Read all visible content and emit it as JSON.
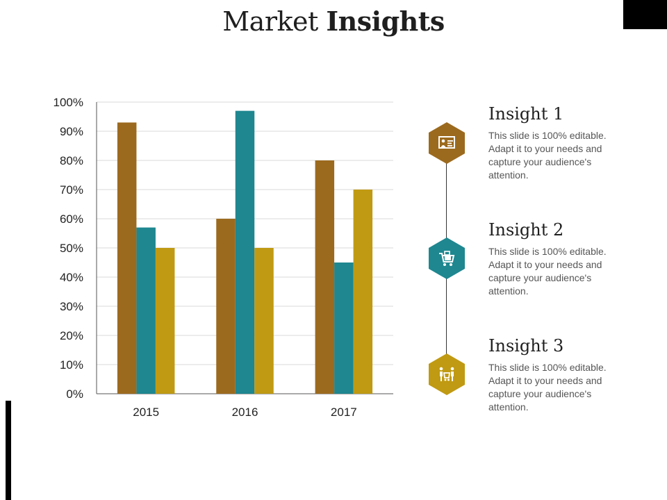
{
  "title": {
    "regular": "Market",
    "bold": "Insights"
  },
  "colors": {
    "series1": "#9c6a1e",
    "series2": "#1e8790",
    "series3": "#c09a12"
  },
  "chart_data": {
    "type": "bar",
    "categories": [
      "2015",
      "2016",
      "2017"
    ],
    "series": [
      {
        "values": [
          93,
          60,
          80
        ]
      },
      {
        "values": [
          57,
          97,
          45
        ]
      },
      {
        "values": [
          50,
          50,
          70
        ]
      }
    ],
    "ylim": [
      0,
      100
    ],
    "yticks": [
      "0%",
      "10%",
      "20%",
      "30%",
      "40%",
      "50%",
      "60%",
      "70%",
      "80%",
      "90%",
      "100%"
    ],
    "grid": true,
    "legend": "none"
  },
  "insights": [
    {
      "title": "Insight 1",
      "text": "This slide is 100% editable. Adapt it to your needs and capture your audience's attention.",
      "icon": "presentation-board-icon",
      "color": "#9c6a1e"
    },
    {
      "title": "Insight 2",
      "text": "This slide is 100% editable. Adapt it to your needs and capture your audience's attention.",
      "icon": "shopping-cart-gift-icon",
      "color": "#1e8790"
    },
    {
      "title": "Insight 3",
      "text": "This slide is 100% editable. Adapt it to your needs and capture your audience's attention.",
      "icon": "people-shopping-icon",
      "color": "#c09a12"
    }
  ]
}
